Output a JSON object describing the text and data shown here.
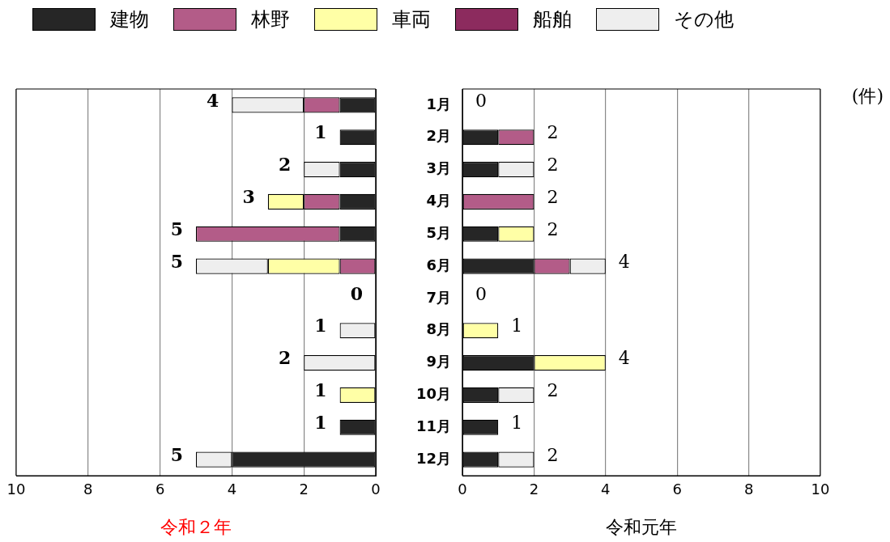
{
  "chart_data": [
    {
      "type": "bar",
      "orientation": "horizontal",
      "stacked": true,
      "xlabel": "令和２年",
      "categories": [
        null,
        null,
        null,
        null,
        null,
        null,
        null,
        null,
        null,
        null,
        null,
        null
      ],
      "series": [
        {
          "name": "建物",
          "color": "#262626",
          "values": [
            1,
            1,
            1,
            1,
            1,
            0,
            0,
            0,
            0,
            0,
            1,
            4
          ]
        },
        {
          "name": "林野",
          "color": "#b35c88",
          "values": [
            1,
            0,
            0,
            1,
            4,
            1,
            0,
            0,
            0,
            0,
            0,
            0
          ]
        },
        {
          "name": "車両",
          "color": "#ffffa6",
          "values": [
            0,
            0,
            0,
            1,
            0,
            2,
            0,
            0,
            0,
            1,
            0,
            0
          ]
        },
        {
          "name": "船舶",
          "color": "#8c2b5e",
          "values": [
            0,
            0,
            0,
            0,
            0,
            0,
            0,
            0,
            0,
            0,
            0,
            0
          ]
        },
        {
          "name": "その他",
          "color": "#eeeeee",
          "values": [
            2,
            0,
            1,
            0,
            0,
            2,
            0,
            1,
            2,
            0,
            0,
            1
          ]
        }
      ],
      "totals": [
        "4",
        "1",
        "2",
        "3",
        "5",
        "5",
        "0",
        "1",
        "2",
        "1",
        "1",
        "5"
      ],
      "xlim": [
        10,
        0
      ],
      "xticks": [
        10,
        8,
        6,
        4,
        2,
        0
      ],
      "grid": "x",
      "legend": "top",
      "tick_labels": "x"
    },
    {
      "type": "bar",
      "orientation": "horizontal",
      "stacked": true,
      "xlabel": "令和元年",
      "categories": [
        "1月",
        "2月",
        "3月",
        "4月",
        "5月",
        "6月",
        "7月",
        "8月",
        "9月",
        "10月",
        "11月",
        "12月"
      ],
      "series": [
        {
          "color": "#262626",
          "values": [
            0,
            1,
            1,
            0,
            1,
            2,
            0,
            0,
            2,
            1,
            1,
            1
          ]
        },
        {
          "color": "#b35c88",
          "values": [
            0,
            1,
            0,
            2,
            0,
            1,
            0,
            0,
            0,
            0,
            0,
            0
          ]
        },
        {
          "color": "#ffffa6",
          "values": [
            0,
            0,
            0,
            0,
            1,
            0,
            0,
            1,
            2,
            0,
            0,
            0
          ]
        },
        {
          "color": "#8c2b5e",
          "values": [
            0,
            0,
            0,
            0,
            0,
            0,
            0,
            0,
            0,
            0,
            0,
            0
          ]
        },
        {
          "color": "#eeeeee",
          "values": [
            0,
            0,
            1,
            0,
            0,
            1,
            0,
            0,
            0,
            1,
            0,
            1
          ]
        }
      ],
      "totals": [
        "0",
        "2",
        "2",
        "2",
        "2",
        "4",
        "0",
        "1",
        "4",
        "2",
        "1",
        "2"
      ],
      "xlim": [
        0,
        10
      ],
      "xticks": [
        0,
        2,
        4,
        6,
        8,
        10
      ],
      "grid": "x",
      "annotations": [
        "(件)"
      ]
    }
  ]
}
